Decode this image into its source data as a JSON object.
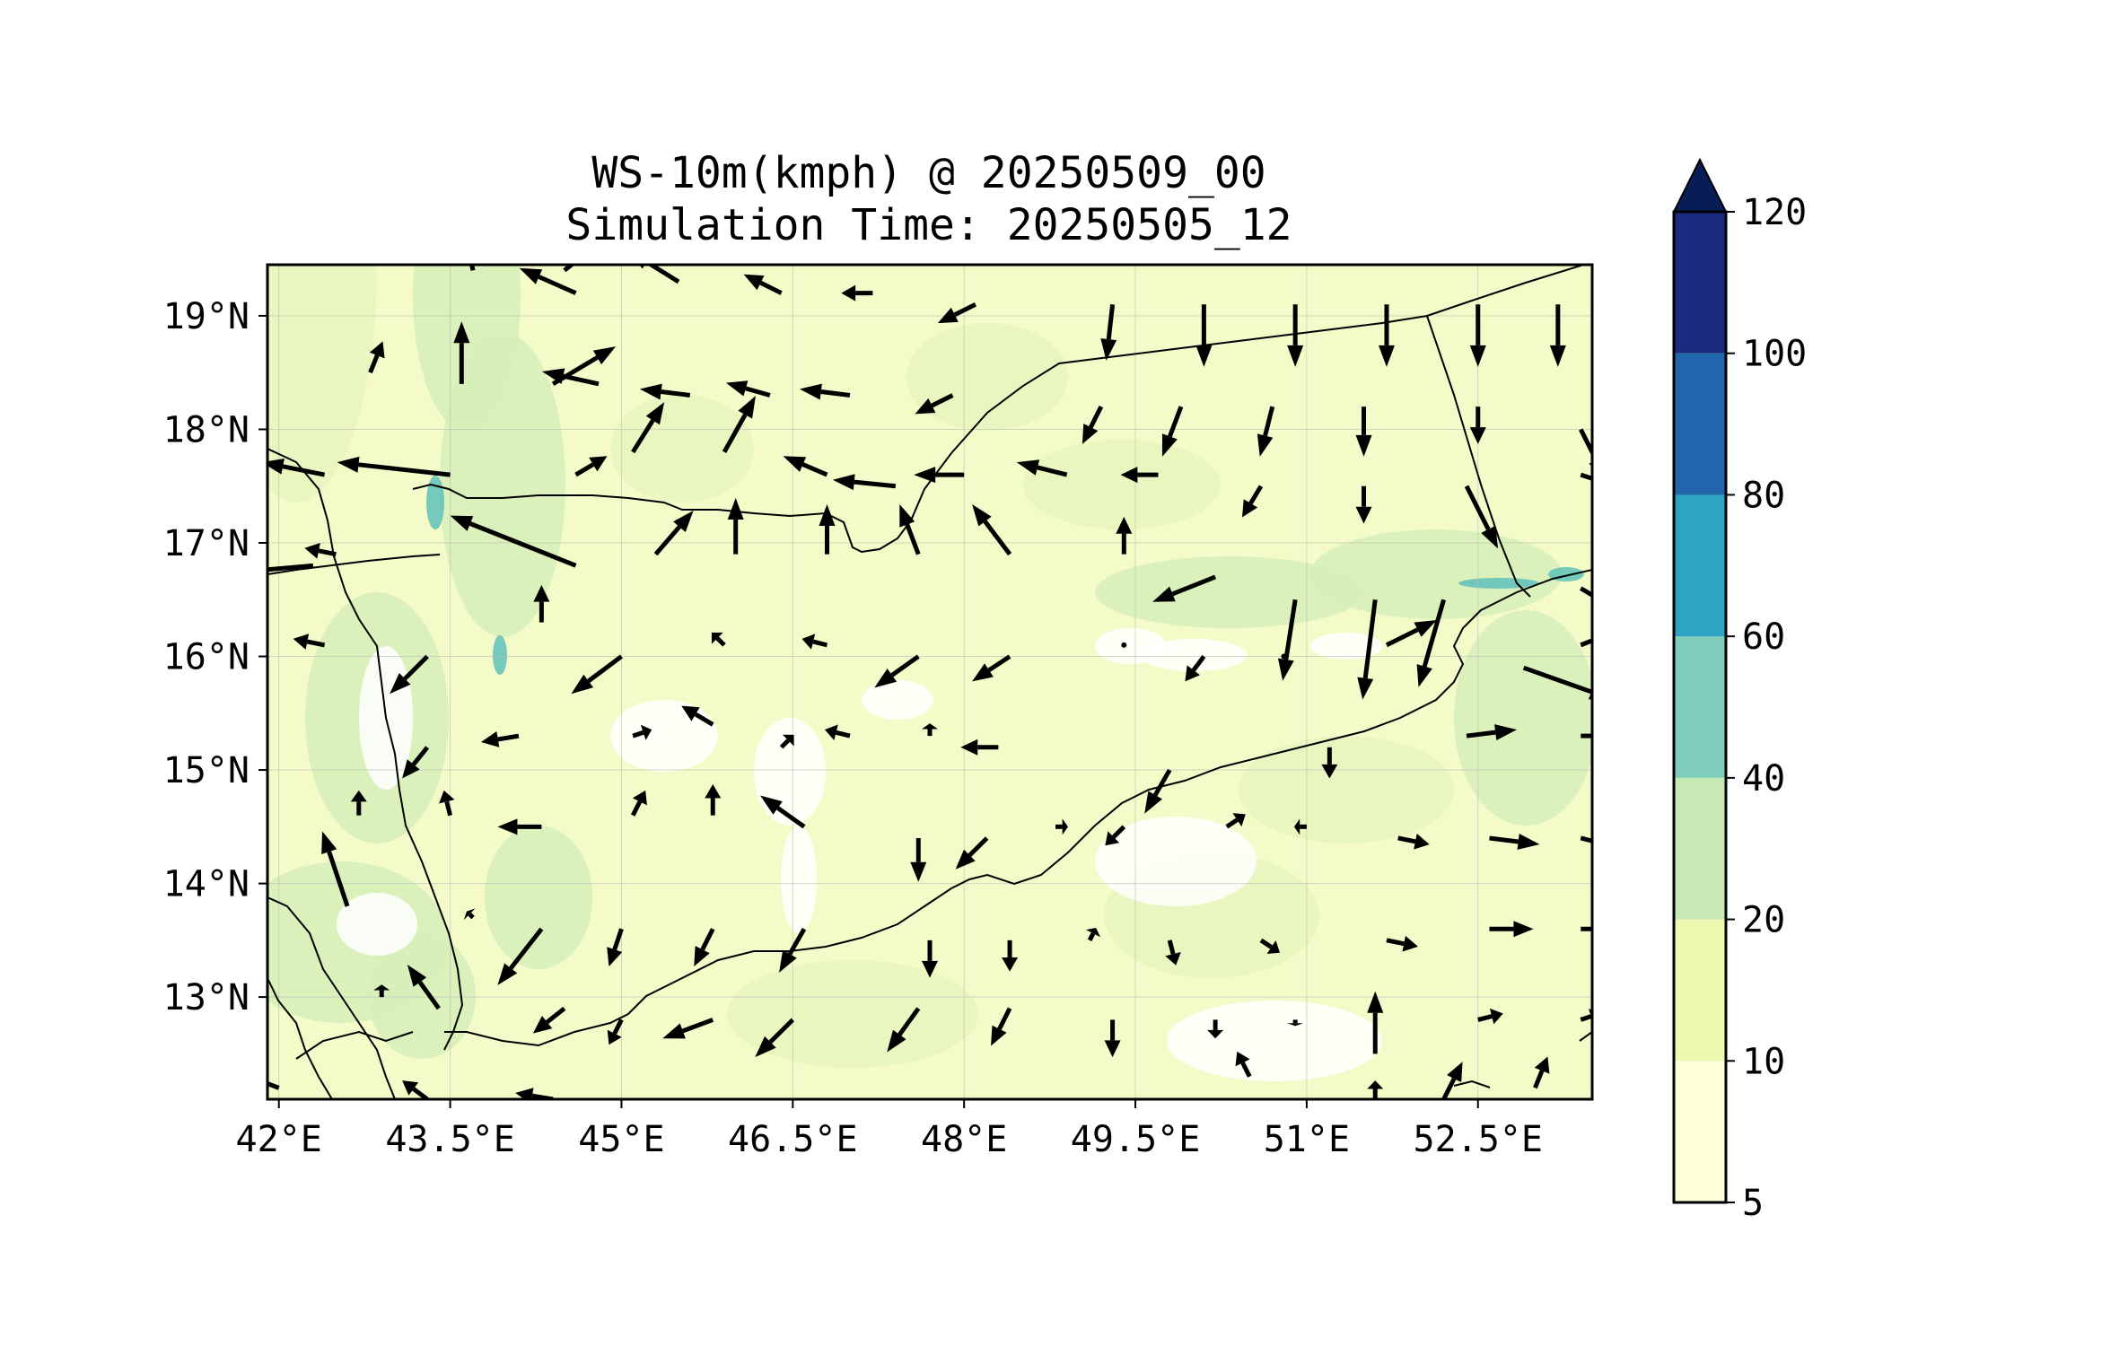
{
  "title": {
    "line1": "WS-10m(kmph) @ 20250509_00",
    "line2": "Simulation Time: 20250505_12"
  },
  "chart_data": {
    "type": "heatmap",
    "subtype": "filled-contour map with wind vectors",
    "variable": "WS-10m(kmph)",
    "valid_time": "20250509_00",
    "simulation_time": "20250505_12",
    "x_ticks": [
      "42°E",
      "43.5°E",
      "45°E",
      "46.5°E",
      "48°E",
      "49.5°E",
      "51°E",
      "52.5°E"
    ],
    "y_ticks": [
      "19°N",
      "18°N",
      "17°N",
      "16°N",
      "15°N",
      "14°N",
      "13°N"
    ],
    "x_range": [
      41.9,
      53.5
    ],
    "y_range": [
      12.1,
      19.45
    ],
    "grid": true,
    "colorbar": {
      "levels": [
        5,
        10,
        20,
        40,
        60,
        80,
        100,
        120
      ],
      "tick_labels": [
        "5",
        "10",
        "20",
        "40",
        "60",
        "80",
        "100",
        "120"
      ],
      "colors": [
        "#ffffd9",
        "#edf8b1",
        "#c7e9b4",
        "#7fcdbb",
        "#2ca4c3",
        "#2166ac",
        "#1b2a7c"
      ],
      "extend_color": "#081d58",
      "extend": "max",
      "placement": "right"
    },
    "dominant_speed_band": "10-20",
    "colors": {
      "land_fill": "#edf8b1",
      "coastline": "#000000",
      "vector": "#000000"
    }
  },
  "icons": {
    "extend_arrow": "triangle-up",
    "wind_vector": "arrow"
  }
}
